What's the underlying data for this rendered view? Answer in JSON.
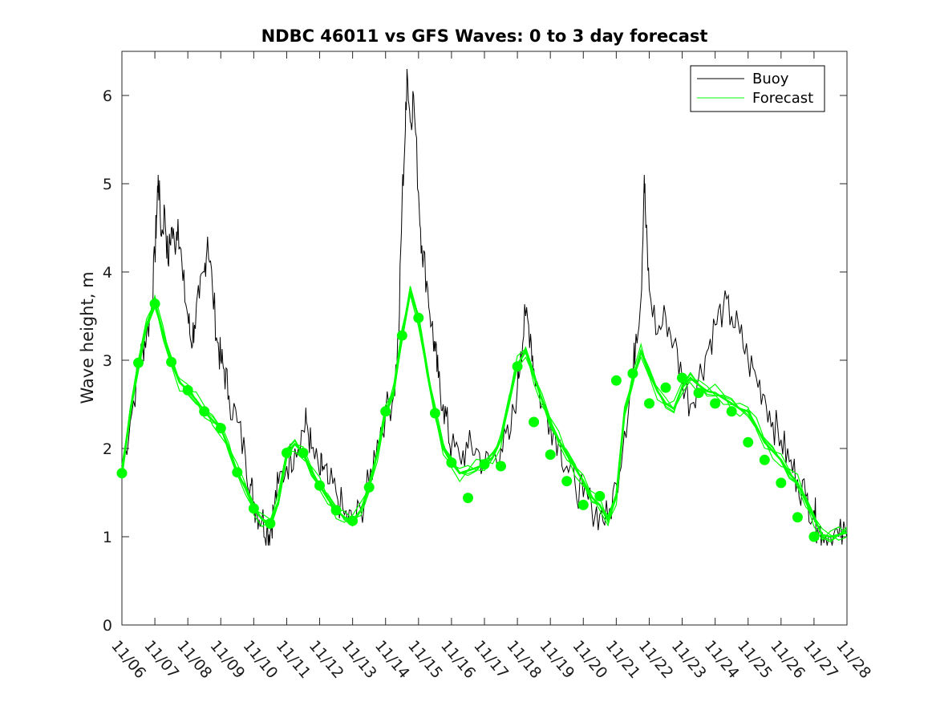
{
  "chart_data": {
    "type": "line",
    "title": "NDBC 46011 vs GFS Waves: 0 to 3 day forecast",
    "xlabel": "",
    "ylabel": "Wave height, m",
    "xlim": [
      0,
      22
    ],
    "ylim": [
      0,
      6.5
    ],
    "x_tick_labels": [
      "11/06",
      "11/07",
      "11/08",
      "11/09",
      "11/10",
      "11/11",
      "11/12",
      "11/13",
      "11/14",
      "11/15",
      "11/16",
      "11/17",
      "11/18",
      "11/19",
      "11/20",
      "11/21",
      "11/22",
      "11/23",
      "11/24",
      "11/25",
      "11/26",
      "11/27",
      "11/28"
    ],
    "y_ticks": [
      0,
      1,
      2,
      3,
      4,
      5,
      6
    ],
    "legend": {
      "position": "top-right",
      "entries": [
        "Buoy",
        "Forecast"
      ]
    },
    "colors": {
      "buoy": "#000000",
      "forecast": "#00ff00"
    },
    "buoy": {
      "name": "Buoy",
      "x": [
        0,
        0.25,
        0.5,
        0.6,
        0.75,
        0.9,
        1.0,
        1.05,
        1.1,
        1.2,
        1.3,
        1.4,
        1.5,
        1.6,
        1.7,
        1.85,
        2.0,
        2.1,
        2.2,
        2.35,
        2.5,
        2.6,
        2.75,
        2.9,
        3.0,
        3.1,
        3.25,
        3.5,
        3.75,
        3.9,
        4.0,
        4.1,
        4.25,
        4.4,
        4.5,
        4.6,
        4.75,
        5.0,
        5.25,
        5.5,
        5.6,
        5.75,
        6.0,
        6.1,
        6.25,
        6.5,
        6.75,
        7.0,
        7.25,
        7.5,
        7.75,
        8.0,
        8.25,
        8.4,
        8.5,
        8.6,
        8.65,
        8.75,
        8.85,
        9.0,
        9.1,
        9.25,
        9.4,
        9.5,
        9.6,
        9.75,
        9.9,
        10.0,
        10.25,
        10.5,
        10.75,
        11.0,
        11.25,
        11.5,
        11.75,
        12.0,
        12.1,
        12.25,
        12.4,
        12.5,
        12.75,
        13.0,
        13.25,
        13.5,
        13.75,
        14.0,
        14.25,
        14.5,
        14.75,
        15.0,
        15.25,
        15.5,
        15.6,
        15.75,
        15.85,
        15.9,
        16.0,
        16.25,
        16.5,
        16.75,
        17.0,
        17.25,
        17.5,
        17.75,
        18.0,
        18.25,
        18.5,
        18.75,
        19.0,
        19.25,
        19.5,
        19.75,
        20.0,
        20.25,
        20.5,
        20.75,
        21.0,
        21.1,
        21.25,
        21.5,
        21.75,
        22.0
      ],
      "y": [
        1.8,
        2.3,
        2.9,
        3.1,
        3.3,
        3.6,
        4.2,
        4.6,
        5.1,
        4.4,
        4.7,
        4.1,
        4.5,
        4.3,
        4.6,
        3.9,
        3.5,
        3.2,
        3.4,
        3.7,
        4.0,
        4.4,
        3.8,
        3.2,
        3.0,
        2.9,
        2.6,
        2.3,
        1.9,
        1.6,
        1.4,
        1.3,
        1.2,
        1.1,
        1.05,
        1.3,
        1.6,
        1.8,
        2.0,
        2.2,
        2.3,
        2.0,
        1.7,
        1.8,
        1.6,
        1.5,
        1.25,
        1.15,
        1.3,
        1.6,
        2.1,
        2.4,
        2.6,
        3.3,
        4.8,
        5.6,
        6.3,
        5.7,
        6.0,
        4.9,
        4.3,
        3.9,
        3.4,
        3.1,
        2.8,
        2.5,
        2.2,
        2.0,
        1.9,
        2.0,
        2.0,
        1.8,
        1.9,
        2.0,
        2.1,
        2.7,
        3.1,
        3.5,
        3.3,
        2.9,
        2.5,
        2.3,
        2.1,
        1.8,
        1.6,
        1.45,
        1.35,
        1.25,
        1.2,
        1.6,
        2.2,
        2.8,
        3.3,
        3.7,
        5.1,
        4.5,
        3.8,
        3.3,
        3.5,
        3.2,
        2.8,
        2.5,
        2.8,
        3.1,
        3.4,
        3.6,
        3.5,
        3.3,
        3.0,
        2.8,
        2.6,
        2.3,
        2.1,
        1.85,
        1.65,
        1.45,
        1.3,
        1.1,
        1.05,
        1.0,
        1.0,
        1.0
      ]
    },
    "forecast": {
      "name": "Forecast",
      "x": [
        0,
        0.25,
        0.5,
        0.75,
        1.0,
        1.25,
        1.5,
        1.75,
        2.0,
        2.25,
        2.5,
        2.75,
        3.0,
        3.25,
        3.5,
        3.75,
        4.0,
        4.25,
        4.5,
        4.75,
        5.0,
        5.25,
        5.5,
        5.75,
        6.0,
        6.25,
        6.5,
        6.75,
        7.0,
        7.25,
        7.5,
        7.75,
        8.0,
        8.25,
        8.5,
        8.75,
        9.0,
        9.25,
        9.5,
        9.75,
        10.0,
        10.25,
        10.5,
        10.75,
        11.0,
        11.25,
        11.5,
        11.75,
        12.0,
        12.25,
        12.5,
        12.75,
        13.0,
        13.25,
        13.5,
        13.75,
        14.0,
        14.25,
        14.5,
        14.75,
        15.0,
        15.25,
        15.5,
        15.75,
        16.0,
        16.25,
        16.5,
        16.75,
        17.0,
        17.25,
        17.5,
        17.75,
        18.0,
        18.25,
        18.5,
        18.75,
        19.0,
        19.25,
        19.5,
        19.75,
        20.0,
        20.25,
        20.5,
        20.75,
        21.0,
        21.25,
        21.5,
        21.75,
        22.0
      ],
      "y": [
        1.72,
        2.4,
        2.97,
        3.4,
        3.65,
        3.3,
        2.98,
        2.75,
        2.66,
        2.55,
        2.42,
        2.32,
        2.23,
        2.0,
        1.73,
        1.55,
        1.32,
        1.2,
        1.15,
        1.4,
        1.95,
        2.05,
        1.95,
        1.75,
        1.58,
        1.43,
        1.3,
        1.22,
        1.18,
        1.3,
        1.56,
        1.95,
        2.42,
        2.65,
        3.28,
        3.78,
        3.48,
        2.9,
        2.4,
        2.0,
        1.84,
        1.72,
        1.75,
        1.78,
        1.82,
        1.9,
        2.1,
        2.55,
        2.95,
        3.1,
        2.82,
        2.55,
        2.3,
        2.1,
        1.93,
        1.78,
        1.63,
        1.45,
        1.36,
        1.18,
        1.46,
        2.4,
        2.77,
        3.1,
        2.85,
        2.65,
        2.51,
        2.45,
        2.69,
        2.8,
        2.72,
        2.65,
        2.63,
        2.57,
        2.51,
        2.45,
        2.42,
        2.25,
        2.07,
        1.97,
        1.87,
        1.72,
        1.61,
        1.4,
        1.21,
        1.02,
        1.0,
        1.02,
        1.05
      ]
    },
    "forecast_markers": {
      "x": [
        0,
        0.5,
        1.0,
        1.5,
        2.0,
        2.5,
        3.0,
        3.5,
        4.0,
        4.5,
        5.0,
        5.5,
        6.0,
        6.5,
        7.0,
        7.5,
        8.0,
        8.5,
        9.0,
        9.5,
        10.0,
        10.5,
        11.0,
        11.5,
        12.0,
        12.5,
        13.0,
        13.5,
        14.0,
        14.5,
        15.0,
        15.5,
        16.0,
        16.5,
        17.0,
        17.5,
        18.0,
        18.5,
        19.0,
        19.5,
        20.0,
        20.5,
        21.0
      ],
      "y": [
        1.72,
        2.97,
        3.64,
        2.98,
        2.66,
        2.42,
        2.23,
        1.73,
        1.32,
        1.15,
        1.95,
        1.95,
        1.58,
        1.3,
        1.18,
        1.56,
        2.42,
        3.28,
        3.48,
        2.4,
        1.84,
        1.44,
        1.82,
        1.8,
        2.93,
        2.3,
        1.93,
        1.63,
        1.36,
        1.46,
        2.77,
        2.85,
        2.51,
        2.69,
        2.8,
        2.63,
        2.51,
        2.42,
        2.07,
        1.87,
        1.61,
        1.22,
        1.0
      ]
    }
  }
}
